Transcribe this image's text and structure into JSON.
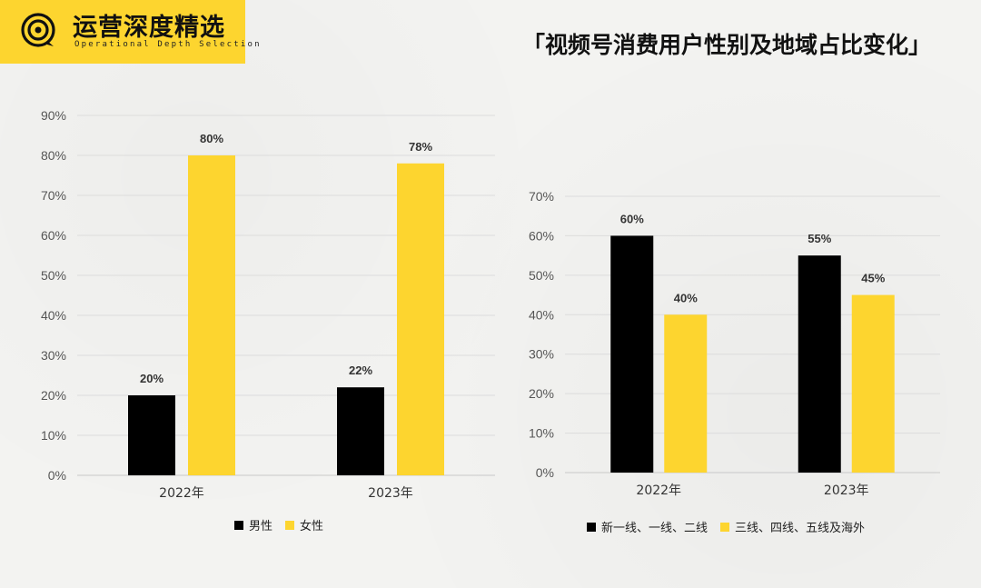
{
  "header": {
    "brand_title": "运营深度精选",
    "brand_subtitle": "Operational Depth Selection",
    "page_title": "「视频号消费用户性别及地域占比变化」"
  },
  "colors": {
    "black": "#000000",
    "yellow": "#fdd52f",
    "brand_yellow": "#fdd52f"
  },
  "chart_data": [
    {
      "type": "bar",
      "categories": [
        "2022年",
        "2023年"
      ],
      "series": [
        {
          "name": "男性",
          "values": [
            20,
            22
          ],
          "color": "#000000"
        },
        {
          "name": "女性",
          "values": [
            80,
            78
          ],
          "color": "#fdd52f"
        }
      ],
      "ylim": [
        0,
        90
      ],
      "yticks": [
        "0%",
        "10%",
        "20%",
        "30%",
        "40%",
        "50%",
        "60%",
        "70%",
        "80%",
        "90%"
      ],
      "data_labels": [
        [
          "20%",
          "22%"
        ],
        [
          "80%",
          "78%"
        ]
      ],
      "grid": true,
      "legend": "bottom"
    },
    {
      "type": "bar",
      "categories": [
        "2022年",
        "2023年"
      ],
      "series": [
        {
          "name": "新一线、一线、二线",
          "values": [
            60,
            55
          ],
          "color": "#000000"
        },
        {
          "name": "三线、四线、五线及海外",
          "values": [
            40,
            45
          ],
          "color": "#fdd52f"
        }
      ],
      "ylim": [
        0,
        70
      ],
      "yticks": [
        "0%",
        "10%",
        "20%",
        "30%",
        "40%",
        "50%",
        "60%",
        "70%"
      ],
      "data_labels": [
        [
          "60%",
          "55%"
        ],
        [
          "40%",
          "45%"
        ]
      ],
      "grid": true,
      "legend": "bottom"
    }
  ]
}
